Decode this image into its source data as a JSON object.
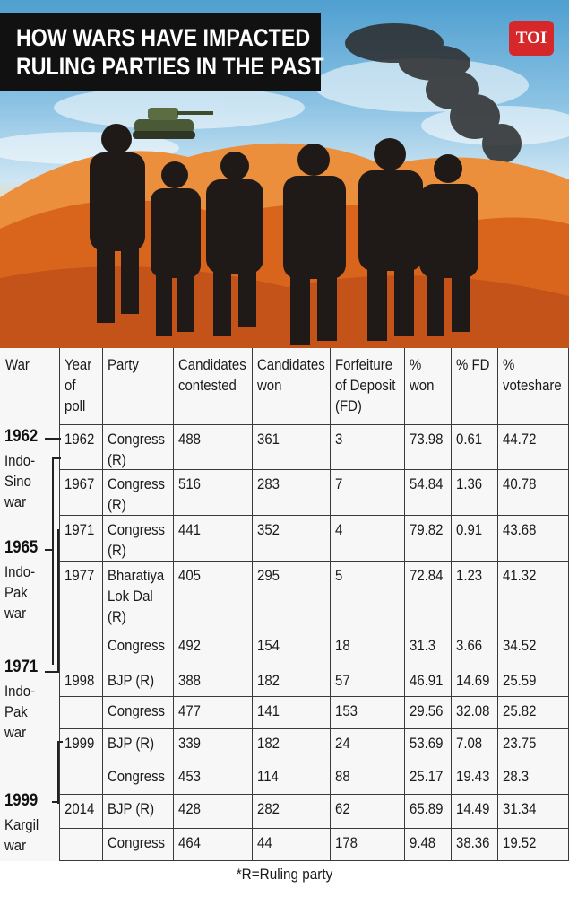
{
  "title_lines": [
    "HOW WARS HAVE IMPACTED",
    "RULING PARTIES IN THE PAST"
  ],
  "brand": "TOI",
  "colors": {
    "title_bg": "#111111",
    "brand_bg": "#d6282b",
    "table_bg": "#f7f7f7"
  },
  "table": {
    "headers": [
      "War",
      "Year\nof\npoll",
      "Party",
      "Candidates\ncontested",
      "Candidates\nwon",
      "Forfeiture\nof Deposit\n(FD)",
      "%\nwon",
      "% FD",
      "%\nvoteshare"
    ],
    "rows": [
      [
        "1962",
        "Congress\n(R)",
        "488",
        "361",
        "3",
        "73.98",
        "0.61",
        "44.72"
      ],
      [
        "1967",
        "Congress\n(R)",
        "516",
        "283",
        "7",
        "54.84",
        "1.36",
        "40.78"
      ],
      [
        "1971",
        "Congress\n(R)",
        "441",
        "352",
        "4",
        "79.82",
        "0.91",
        "43.68"
      ],
      [
        "1977",
        "Bharatiya\nLok Dal\n(R)",
        "405",
        "295",
        "5",
        "72.84",
        "1.23",
        "41.32"
      ],
      [
        "",
        "Congress",
        "492",
        "154",
        "18",
        "31.3",
        "3.66",
        "34.52"
      ],
      [
        "1998",
        "BJP (R)",
        "388",
        "182",
        "57",
        "46.91",
        "14.69",
        "25.59"
      ],
      [
        "",
        "Congress",
        "477",
        "141",
        "153",
        "29.56",
        "32.08",
        "25.82"
      ],
      [
        "1999",
        "BJP (R)",
        "339",
        "182",
        "24",
        "53.69",
        "7.08",
        "23.75"
      ],
      [
        "",
        "Congress",
        "453",
        "114",
        "88",
        "25.17",
        "19.43",
        "28.3"
      ],
      [
        "2014",
        "BJP (R)",
        "428",
        "282",
        "62",
        "65.89",
        "14.49",
        "31.34"
      ],
      [
        "",
        "Congress",
        "464",
        "44",
        "178",
        "9.48",
        "38.36",
        "19.52"
      ]
    ],
    "wars": [
      {
        "year": "1962",
        "name": "Indo-\nSino\nwar"
      },
      {
        "year": "1965",
        "name": "Indo-\nPak\nwar"
      },
      {
        "year": "1971",
        "name": "Indo-\nPak\nwar"
      },
      {
        "year": "1999",
        "name": "Kargil\nwar"
      }
    ]
  },
  "footnote": "*R=Ruling party",
  "chart_data": {
    "type": "table",
    "title": "HOW WARS HAVE IMPACTED RULING PARTIES IN THE PAST",
    "columns": [
      "War",
      "Year of poll",
      "Party",
      "Candidates contested",
      "Candidates won",
      "Forfeiture of Deposit (FD)",
      "% won",
      "% FD",
      "% voteshare"
    ],
    "wars": [
      "1962 Indo-Sino war",
      "1965 Indo-Pak war",
      "1971 Indo-Pak war",
      "1999 Kargil war"
    ],
    "rows": [
      {
        "year": 1962,
        "party": "Congress (R)",
        "contested": 488,
        "won": 361,
        "fd": 3,
        "pct_won": 73.98,
        "pct_fd": 0.61,
        "voteshare": 44.72
      },
      {
        "year": 1967,
        "party": "Congress (R)",
        "contested": 516,
        "won": 283,
        "fd": 7,
        "pct_won": 54.84,
        "pct_fd": 1.36,
        "voteshare": 40.78
      },
      {
        "year": 1971,
        "party": "Congress (R)",
        "contested": 441,
        "won": 352,
        "fd": 4,
        "pct_won": 79.82,
        "pct_fd": 0.91,
        "voteshare": 43.68
      },
      {
        "year": 1977,
        "party": "Bharatiya Lok Dal (R)",
        "contested": 405,
        "won": 295,
        "fd": 5,
        "pct_won": 72.84,
        "pct_fd": 1.23,
        "voteshare": 41.32
      },
      {
        "year": 1977,
        "party": "Congress",
        "contested": 492,
        "won": 154,
        "fd": 18,
        "pct_won": 31.3,
        "pct_fd": 3.66,
        "voteshare": 34.52
      },
      {
        "year": 1998,
        "party": "BJP (R)",
        "contested": 388,
        "won": 182,
        "fd": 57,
        "pct_won": 46.91,
        "pct_fd": 14.69,
        "voteshare": 25.59
      },
      {
        "year": 1998,
        "party": "Congress",
        "contested": 477,
        "won": 141,
        "fd": 153,
        "pct_won": 29.56,
        "pct_fd": 32.08,
        "voteshare": 25.82
      },
      {
        "year": 1999,
        "party": "BJP (R)",
        "contested": 339,
        "won": 182,
        "fd": 24,
        "pct_won": 53.69,
        "pct_fd": 7.08,
        "voteshare": 23.75
      },
      {
        "year": 1999,
        "party": "Congress",
        "contested": 453,
        "won": 114,
        "fd": 88,
        "pct_won": 25.17,
        "pct_fd": 19.43,
        "voteshare": 28.3
      },
      {
        "year": 2014,
        "party": "BJP (R)",
        "contested": 428,
        "won": 282,
        "fd": 62,
        "pct_won": 65.89,
        "pct_fd": 14.49,
        "voteshare": 31.34
      },
      {
        "year": 2014,
        "party": "Congress",
        "contested": 464,
        "won": 44,
        "fd": 178,
        "pct_won": 9.48,
        "pct_fd": 38.36,
        "voteshare": 19.52
      }
    ],
    "footnote": "*R=Ruling party"
  }
}
